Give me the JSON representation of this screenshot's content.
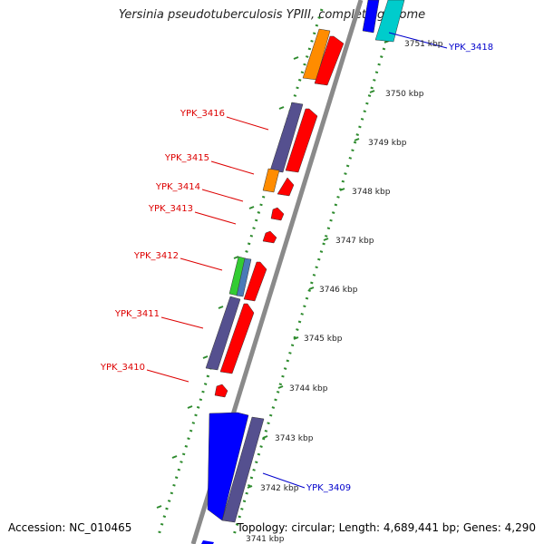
{
  "title": "Yersinia pseudotuberculosis YPIII, complete genome",
  "footer": {
    "accession": "Accession: NC_010465",
    "summary": "Topology: circular; Length: 4,689,441 bp; Genes: 4,290"
  },
  "colors": {
    "backbone": "#8a8a8a",
    "ticks": "#2e8b2e",
    "cds_forward": "#ff0000",
    "rna": "#ff8c00",
    "gene": "#55508f",
    "cds_reverse": "#0000ff",
    "other": "#00cccc",
    "misc": "#33cc33",
    "misc2": "#4a7ab8",
    "label_red": "#dd0000",
    "label_blue": "#0000cc"
  },
  "scale_labels": [
    "3751 kbp",
    "3750 kbp",
    "3749 kbp",
    "3748 kbp",
    "3747 kbp",
    "3746 kbp",
    "3745 kbp",
    "3744 kbp",
    "3743 kbp",
    "3742 kbp",
    "3741 kbp"
  ],
  "gene_labels_left": [
    "YPK_3416",
    "YPK_3415",
    "YPK_3414",
    "YPK_3413",
    "YPK_3412",
    "YPK_3411",
    "YPK_3410"
  ],
  "gene_labels_right": [
    "YPK_3418",
    "YPK_3409"
  ]
}
